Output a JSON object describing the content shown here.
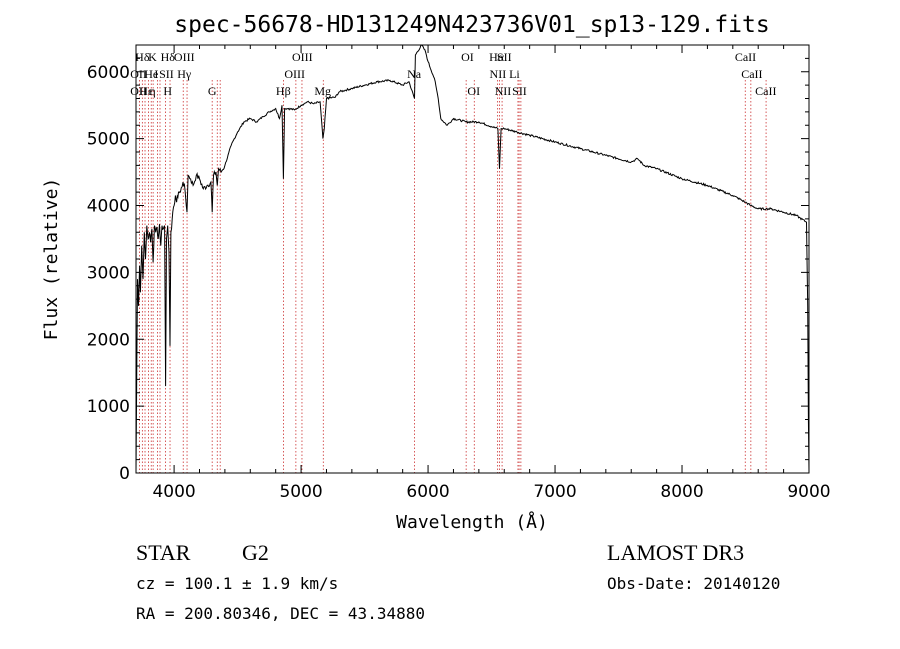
{
  "chart_data": {
    "type": "line",
    "title": "spec-56678-HD131249N423736V01_sp13-129.fits",
    "xlabel": "Wavelength (Å)",
    "ylabel": "Flux (relative)",
    "xlim": [
      3700,
      9000
    ],
    "ylim": [
      0,
      6400
    ],
    "xticks": [
      4000,
      5000,
      6000,
      7000,
      8000,
      9000
    ],
    "yticks": [
      0,
      1000,
      2000,
      3000,
      4000,
      5000,
      6000
    ],
    "series": [
      {
        "name": "flux",
        "x": [
          3700,
          3705,
          3712,
          3720,
          3728,
          3735,
          3745,
          3755,
          3765,
          3775,
          3785,
          3795,
          3805,
          3815,
          3825,
          3835,
          3845,
          3855,
          3865,
          3875,
          3885,
          3895,
          3905,
          3915,
          3925,
          3933,
          3940,
          3950,
          3960,
          3968,
          3975,
          3985,
          4000,
          4010,
          4020,
          4035,
          4050,
          4070,
          4085,
          4102,
          4110,
          4130,
          4150,
          4175,
          4200,
          4230,
          4260,
          4290,
          4300,
          4310,
          4330,
          4340,
          4350,
          4370,
          4400,
          4450,
          4500,
          4550,
          4600,
          4650,
          4700,
          4750,
          4800,
          4830,
          4850,
          4861,
          4870,
          4900,
          4950,
          5000,
          5050,
          5100,
          5150,
          5172,
          5183,
          5200,
          5270,
          5300,
          5400,
          5500,
          5600,
          5700,
          5800,
          5850,
          5893,
          5900,
          5950,
          5980,
          6000,
          6050,
          6080,
          6100,
          6150,
          6200,
          6300,
          6400,
          6500,
          6550,
          6563,
          6575,
          6600,
          6700,
          6800,
          7000,
          7200,
          7400,
          7600,
          7650,
          7700,
          7800,
          8000,
          8200,
          8400,
          8498,
          8542,
          8600,
          8662,
          8700,
          8800,
          8900,
          8980,
          8990,
          8995,
          9000
        ],
        "y": [
          0,
          1200,
          2900,
          2500,
          3100,
          2700,
          3400,
          2900,
          3600,
          3200,
          3700,
          3500,
          3600,
          3450,
          3650,
          3150,
          3700,
          3600,
          3680,
          3500,
          3720,
          3400,
          3700,
          3650,
          3700,
          1300,
          3500,
          3700,
          3300,
          1900,
          3600,
          3800,
          4000,
          4150,
          4050,
          4200,
          4200,
          4350,
          4250,
          3900,
          4450,
          4400,
          4300,
          4450,
          4400,
          4250,
          4300,
          4350,
          3900,
          4450,
          4500,
          4300,
          4550,
          4500,
          4600,
          4900,
          5100,
          5250,
          5300,
          5250,
          5330,
          5400,
          5450,
          5300,
          5500,
          4400,
          5450,
          5450,
          5430,
          5500,
          5550,
          5520,
          5550,
          5000,
          5150,
          5600,
          5620,
          5700,
          5750,
          5800,
          5850,
          5870,
          5800,
          5850,
          5600,
          6250,
          6400,
          6300,
          6150,
          5900,
          5600,
          5300,
          5200,
          5300,
          5250,
          5250,
          5180,
          5150,
          4550,
          5150,
          5150,
          5100,
          5050,
          4950,
          4850,
          4750,
          4650,
          4700,
          4600,
          4550,
          4400,
          4300,
          4150,
          4050,
          4000,
          3950,
          3950,
          3950,
          3900,
          3850,
          3750,
          2500,
          800,
          0
        ]
      }
    ],
    "line_labels": [
      {
        "text": "Hδ",
        "x": 3750,
        "row": 1
      },
      {
        "text": "K",
        "x": 3830,
        "row": 1
      },
      {
        "text": "Hδ",
        "x": 3950,
        "row": 1
      },
      {
        "text": "OIII",
        "x": 4080,
        "row": 1
      },
      {
        "text": "OIII",
        "x": 5010,
        "row": 1
      },
      {
        "text": "OI",
        "x": 6310,
        "row": 1
      },
      {
        "text": "Hα",
        "x": 6540,
        "row": 1
      },
      {
        "text": "SII",
        "x": 6600,
        "row": 1
      },
      {
        "text": "CaII",
        "x": 8500,
        "row": 1
      },
      {
        "text": "OII",
        "x": 3720,
        "row": 2
      },
      {
        "text": "He",
        "x": 3820,
        "row": 2
      },
      {
        "text": "I",
        "x": 3860,
        "row": 2
      },
      {
        "text": "SII",
        "x": 3940,
        "row": 2
      },
      {
        "text": "Hγ",
        "x": 4080,
        "row": 2
      },
      {
        "text": "OIII",
        "x": 4950,
        "row": 2
      },
      {
        "text": "Na",
        "x": 5890,
        "row": 2
      },
      {
        "text": "NII",
        "x": 6550,
        "row": 2
      },
      {
        "text": "Li",
        "x": 6680,
        "row": 2
      },
      {
        "text": "CaII",
        "x": 8550,
        "row": 2
      },
      {
        "text": "OII",
        "x": 3720,
        "row": 3
      },
      {
        "text": "Hε",
        "x": 3780,
        "row": 3
      },
      {
        "text": "η",
        "x": 3830,
        "row": 3
      },
      {
        "text": "H",
        "x": 3950,
        "row": 3
      },
      {
        "text": "G",
        "x": 4300,
        "row": 3
      },
      {
        "text": "Hβ",
        "x": 4860,
        "row": 3
      },
      {
        "text": "Mg",
        "x": 5170,
        "row": 3
      },
      {
        "text": "OI",
        "x": 6360,
        "row": 3
      },
      {
        "text": "NII",
        "x": 6590,
        "row": 3
      },
      {
        "text": "SII",
        "x": 6720,
        "row": 3
      },
      {
        "text": "CaII",
        "x": 8660,
        "row": 3
      }
    ],
    "line_markers": [
      3727,
      3750,
      3771,
      3798,
      3820,
      3835,
      3869,
      3889,
      3933,
      3968,
      4072,
      4102,
      4300,
      4340,
      4363,
      4861,
      4959,
      5007,
      5175,
      5893,
      6300,
      6364,
      6548,
      6563,
      6583,
      6708,
      6717,
      6731,
      8498,
      8542,
      8662
    ]
  },
  "info": {
    "class": "STAR",
    "subclass": "G2",
    "survey": "LAMOST DR3",
    "cz": "cz = 100.1 ± 1.9 km/s",
    "obs_date": "Obs-Date: 20140120",
    "coords": "RA = 200.80346, DEC =  43.34880"
  },
  "colors": {
    "line": "#000000",
    "markers": "#cc3333",
    "background": "#ffffff"
  }
}
